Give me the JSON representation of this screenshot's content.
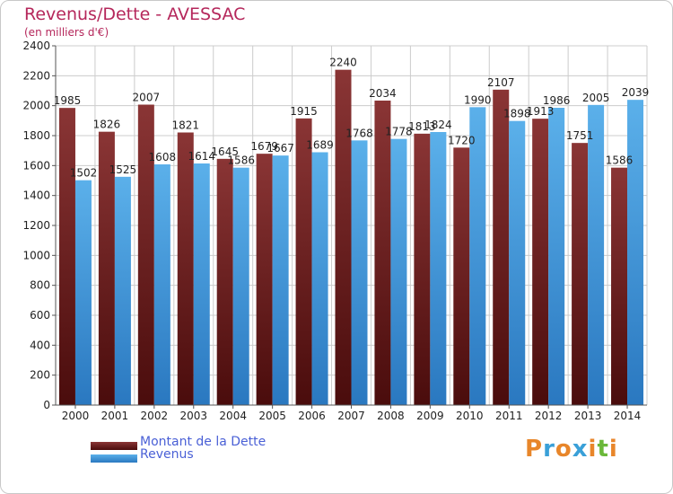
{
  "title": "Revenus/Dette - AVESSAC",
  "subtitle": "(en milliers d'€)",
  "logo": {
    "text": "Proxiti",
    "letters": [
      {
        "ch": "P",
        "color": "#e8862a"
      },
      {
        "ch": "r",
        "color": "#3aa0d8"
      },
      {
        "ch": "o",
        "color": "#e8862a"
      },
      {
        "ch": "x",
        "color": "#3aa0d8"
      },
      {
        "ch": "i",
        "color": "#e8862a"
      },
      {
        "ch": "t",
        "color": "#6bb83a"
      },
      {
        "ch": "i",
        "color": "#e8862a"
      }
    ]
  },
  "colors": {
    "dette": "#7b2a2a",
    "revenus": "#4aa2e0",
    "grid": "#cccccc",
    "axis": "#555555",
    "label": "#222222"
  },
  "chart_data": {
    "type": "bar",
    "title": "Revenus/Dette - AVESSAC",
    "subtitle": "(en milliers d'€)",
    "xlabel": "",
    "ylabel": "",
    "ylim": [
      0,
      2400
    ],
    "yticks": [
      0,
      200,
      400,
      600,
      800,
      1000,
      1200,
      1400,
      1600,
      1800,
      2000,
      2200,
      2400
    ],
    "grid": true,
    "legend_position": "bottom-left",
    "categories": [
      "2000",
      "2001",
      "2002",
      "2003",
      "2004",
      "2005",
      "2006",
      "2007",
      "2008",
      "2009",
      "2010",
      "2011",
      "2012",
      "2013",
      "2014"
    ],
    "series": [
      {
        "name": "Montant de la Dette",
        "values": [
          1985,
          1826,
          2007,
          1821,
          1645,
          1679,
          1915,
          2240,
          2034,
          1813,
          1720,
          2107,
          1913,
          1751,
          1586
        ]
      },
      {
        "name": "Revenus",
        "values": [
          1502,
          1525,
          1608,
          1614,
          1586,
          1667,
          1689,
          1768,
          1778,
          1824,
          1990,
          1898,
          1986,
          2005,
          2039
        ]
      }
    ]
  }
}
